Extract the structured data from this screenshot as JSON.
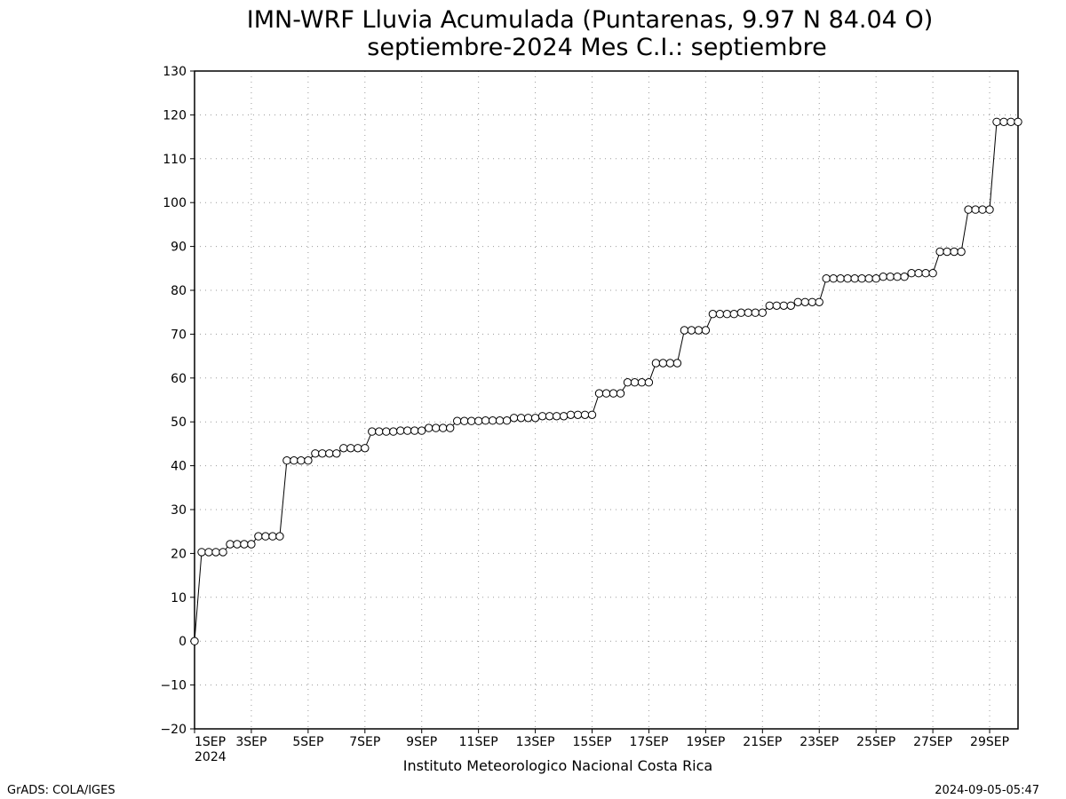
{
  "chart_data": {
    "type": "line",
    "title": "IMN-WRF  Lluvia Acumulada (Puntarenas, 9.97  N 84.04  O)",
    "subtitle": "septiembre-2024 Mes C.I.: septiembre",
    "xlabel": "",
    "ylabel": "",
    "ylim": [
      -20,
      130
    ],
    "xlim": [
      0,
      29
    ],
    "y_ticks": [
      -20,
      -10,
      0,
      10,
      20,
      30,
      40,
      50,
      60,
      70,
      80,
      90,
      100,
      110,
      120,
      130
    ],
    "x_ticks": [
      {
        "x": 0,
        "label": "1SEP"
      },
      {
        "x": 2,
        "label": "3SEP"
      },
      {
        "x": 4,
        "label": "5SEP"
      },
      {
        "x": 6,
        "label": "7SEP"
      },
      {
        "x": 8,
        "label": "9SEP"
      },
      {
        "x": 10,
        "label": "11SEP"
      },
      {
        "x": 12,
        "label": "13SEP"
      },
      {
        "x": 14,
        "label": "15SEP"
      },
      {
        "x": 16,
        "label": "17SEP"
      },
      {
        "x": 18,
        "label": "19SEP"
      },
      {
        "x": 20,
        "label": "21SEP"
      },
      {
        "x": 22,
        "label": "23SEP"
      },
      {
        "x": 24,
        "label": "25SEP"
      },
      {
        "x": 26,
        "label": "27SEP"
      },
      {
        "x": 28,
        "label": "29SEP"
      }
    ],
    "x_year_label": "2024",
    "grid": true,
    "series": [
      {
        "x": [
          0.0,
          0.25,
          0.5,
          0.75,
          1.0,
          1.25,
          1.5,
          1.75,
          2.0,
          2.25,
          2.5,
          2.75,
          3.0,
          3.25,
          3.5,
          3.75,
          4.0,
          4.25,
          4.5,
          4.75,
          5.0,
          5.25,
          5.5,
          5.75,
          6.0,
          6.25,
          6.5,
          6.75,
          7.0,
          7.25,
          7.5,
          7.75,
          8.0,
          8.25,
          8.5,
          8.75,
          9.0,
          9.25,
          9.5,
          9.75,
          10.0,
          10.25,
          10.5,
          10.75,
          11.0,
          11.25,
          11.5,
          11.75,
          12.0,
          12.25,
          12.5,
          12.75,
          13.0,
          13.25,
          13.5,
          13.75,
          14.0,
          14.25,
          14.5,
          14.75,
          15.0,
          15.25,
          15.5,
          15.75,
          16.0,
          16.25,
          16.5,
          16.75,
          17.0,
          17.25,
          17.5,
          17.75,
          18.0,
          18.25,
          18.5,
          18.75,
          19.0,
          19.25,
          19.5,
          19.75,
          20.0,
          20.25,
          20.5,
          20.75,
          21.0,
          21.25,
          21.5,
          21.75,
          22.0,
          22.25,
          22.5,
          22.75,
          23.0,
          23.25,
          23.5,
          23.75,
          24.0,
          24.25,
          24.5,
          24.75,
          25.0,
          25.25,
          25.5,
          25.75,
          26.0,
          26.25,
          26.5,
          26.75,
          27.0,
          27.25,
          27.5,
          27.75,
          28.0,
          28.25,
          28.5,
          28.75,
          29.0
        ],
        "values": [
          0,
          20.3,
          20.3,
          20.3,
          20.3,
          22.1,
          22.1,
          22.1,
          22.1,
          23.9,
          23.9,
          23.9,
          23.9,
          41.2,
          41.2,
          41.2,
          41.2,
          42.8,
          42.8,
          42.8,
          42.8,
          44.0,
          44.0,
          44.0,
          44.0,
          47.8,
          47.8,
          47.8,
          47.8,
          48.0,
          48.0,
          48.0,
          48.0,
          48.6,
          48.6,
          48.6,
          48.6,
          50.2,
          50.2,
          50.2,
          50.2,
          50.3,
          50.3,
          50.3,
          50.3,
          50.9,
          50.9,
          50.9,
          50.9,
          51.3,
          51.3,
          51.3,
          51.3,
          51.6,
          51.6,
          51.6,
          51.6,
          56.5,
          56.5,
          56.5,
          56.5,
          59.0,
          59.0,
          59.0,
          59.0,
          63.4,
          63.4,
          63.4,
          63.4,
          70.9,
          70.9,
          70.9,
          70.9,
          74.6,
          74.6,
          74.6,
          74.6,
          74.9,
          74.9,
          74.9,
          74.9,
          76.5,
          76.5,
          76.5,
          76.5,
          77.3,
          77.3,
          77.3,
          77.3,
          82.7,
          82.7,
          82.7,
          82.7,
          82.7,
          82.7,
          82.7,
          82.7,
          83.1,
          83.1,
          83.1,
          83.1,
          83.9,
          83.9,
          83.9,
          83.9,
          88.8,
          88.8,
          88.8,
          88.8,
          98.4,
          98.4,
          98.4,
          98.4,
          118.4,
          118.4,
          118.4,
          118.4
        ]
      }
    ]
  },
  "footer": {
    "institution": "Instituto Meteorologico Nacional Costa Rica",
    "software": "GrADS: COLA/IGES",
    "timestamp": "2024-09-05-05:47"
  }
}
